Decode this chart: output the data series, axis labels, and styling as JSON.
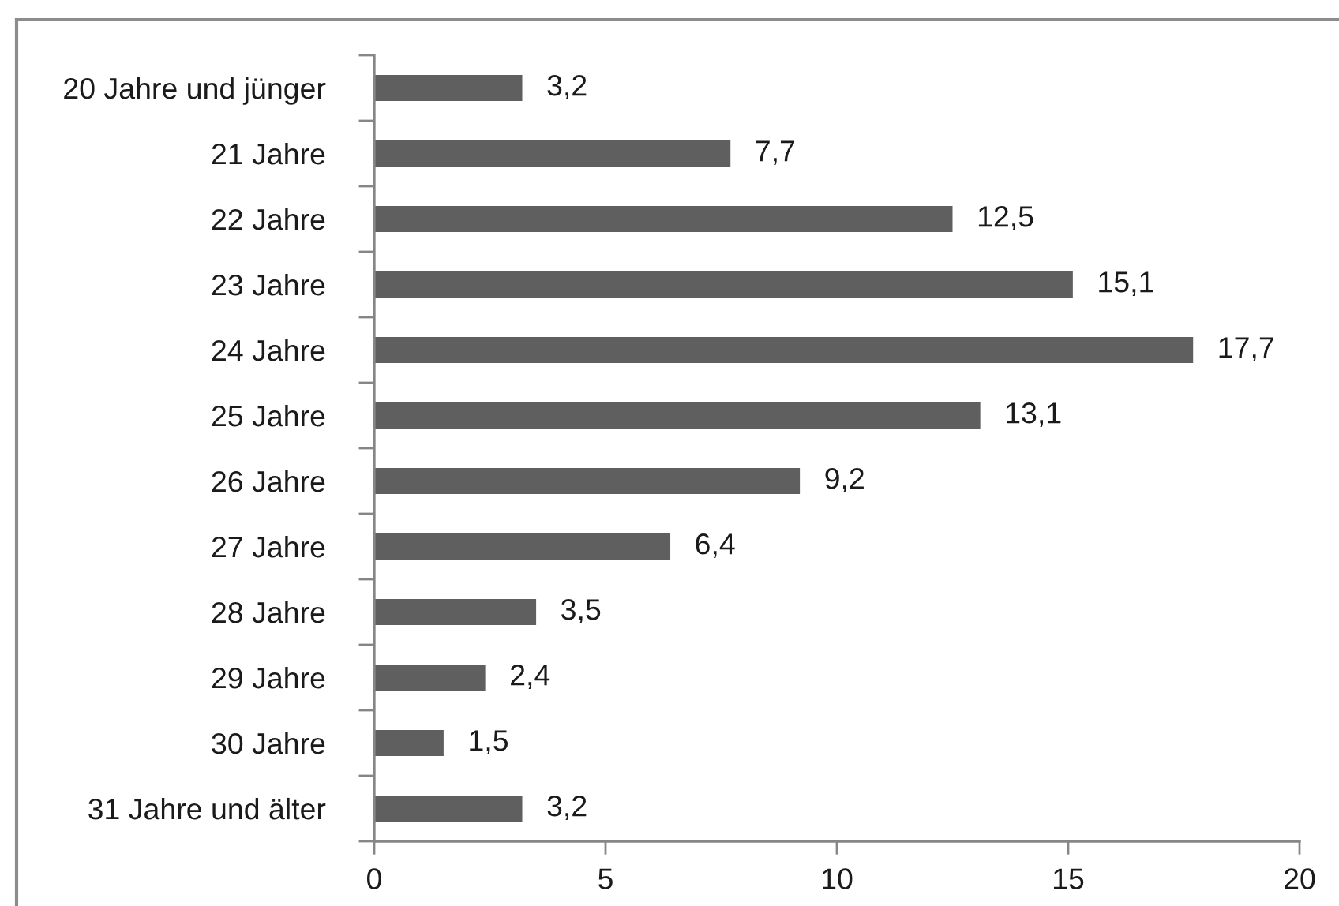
{
  "chart_data": {
    "type": "bar",
    "orientation": "horizontal",
    "categories": [
      "20 Jahre und jünger",
      "21 Jahre",
      "22 Jahre",
      "23 Jahre",
      "24 Jahre",
      "25 Jahre",
      "26 Jahre",
      "27 Jahre",
      "28 Jahre",
      "29 Jahre",
      "30 Jahre",
      "31 Jahre und älter"
    ],
    "values": [
      3.2,
      7.7,
      12.5,
      15.1,
      17.7,
      13.1,
      9.2,
      6.4,
      3.5,
      2.4,
      1.5,
      3.2
    ],
    "value_labels": [
      "3,2",
      "7,7",
      "12,5",
      "15,1",
      "17,7",
      "13,1",
      "9,2",
      "6,4",
      "3,5",
      "2,4",
      "1,5",
      "3,2"
    ],
    "color": "#5f5f5f",
    "xlim": [
      0,
      20
    ],
    "xticks": [
      0,
      5,
      10,
      15,
      20
    ]
  }
}
